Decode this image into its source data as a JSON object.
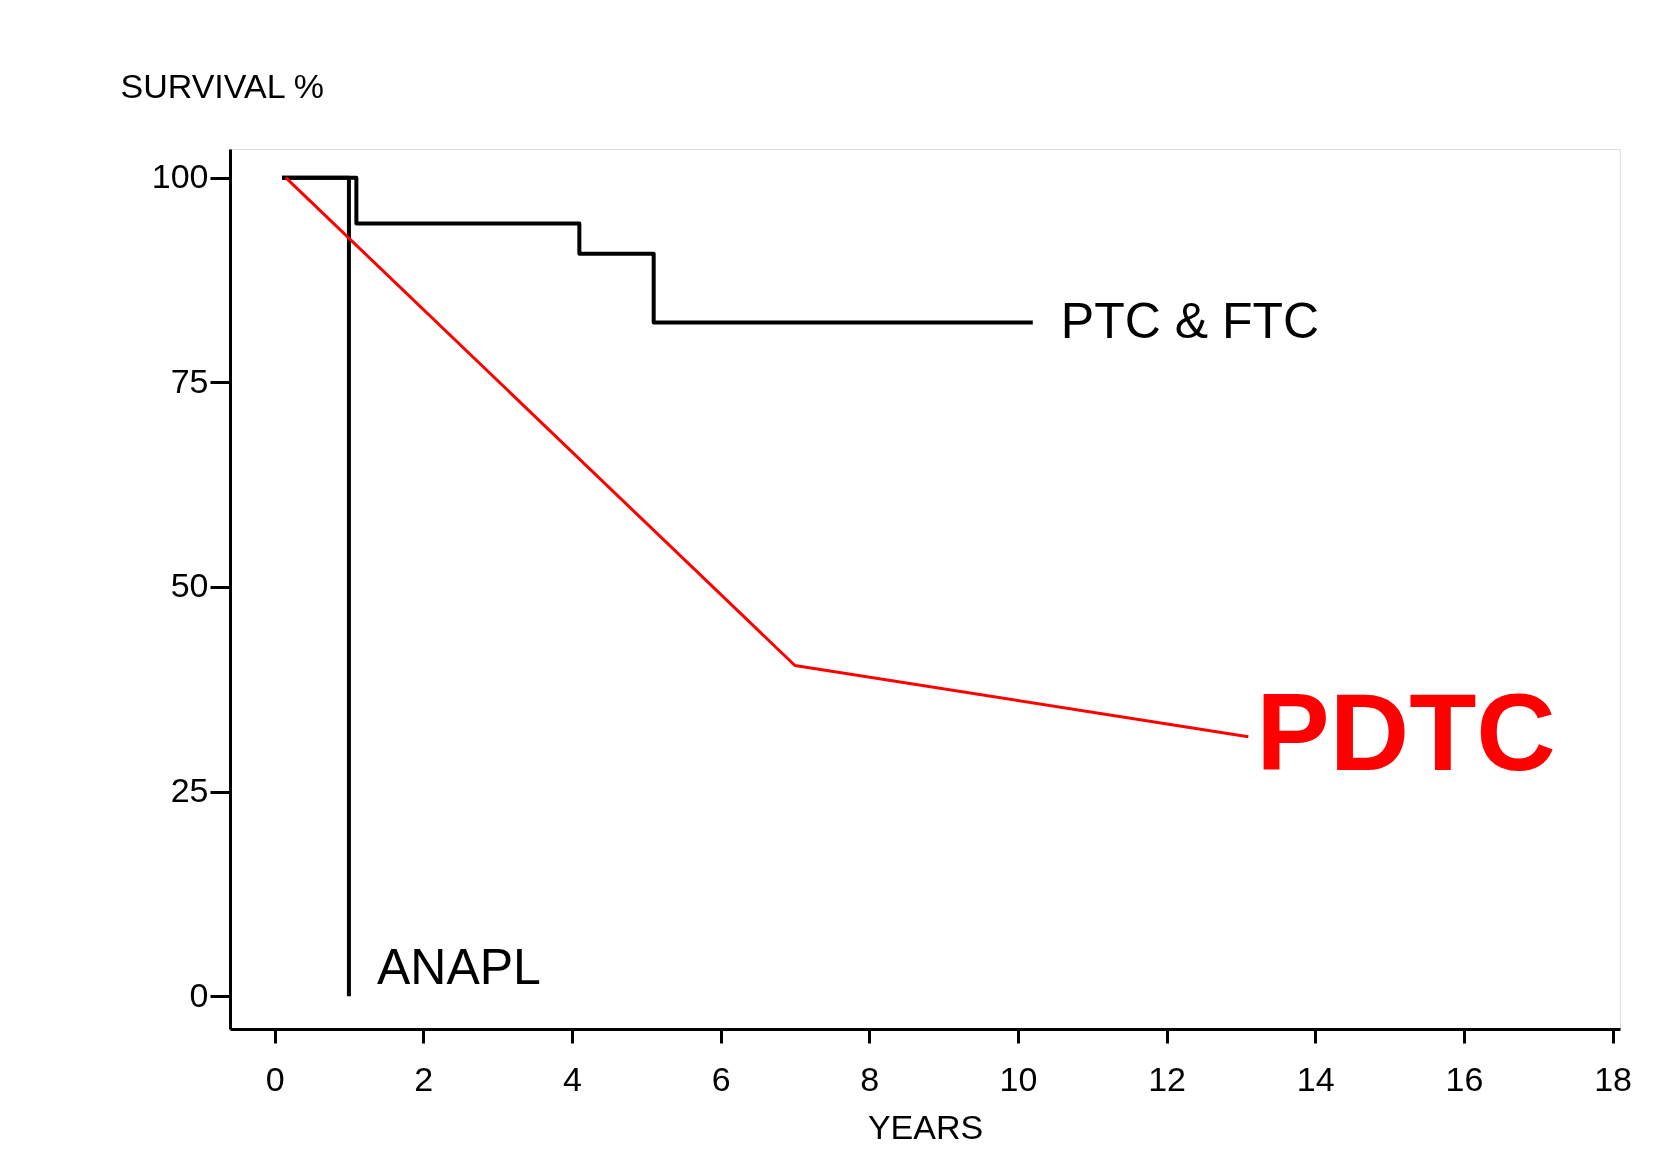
{
  "chart_data": {
    "type": "step",
    "ylabel": "SURVIVAL %",
    "xlabel": "YEARS",
    "xlim": [
      -0.6,
      18.1
    ],
    "ylim": [
      -4,
      103.5
    ],
    "xticks": [
      0,
      2,
      4,
      6,
      8,
      10,
      12,
      14,
      16,
      18
    ],
    "yticks": [
      0,
      25,
      50,
      75,
      100
    ],
    "grid": false,
    "marker": "none",
    "line_style": "solid",
    "series": [
      {
        "name": "PTC & FTC",
        "color": "#000000",
        "x": [
          0.1,
          1.1,
          4.1,
          5.1,
          10.2
        ],
        "values": [
          100,
          94.4,
          90.7,
          82.3,
          82.3
        ]
      },
      {
        "name": "ANAPL",
        "color": "#000000",
        "x": [
          0.1,
          1.0
        ],
        "values": [
          100,
          0
        ]
      },
      {
        "name": "PDTC",
        "type": "line",
        "color": "#ff0000",
        "x": [
          0.15,
          7.0,
          13.1
        ],
        "values": [
          100,
          40.4,
          31.7
        ]
      }
    ]
  }
}
